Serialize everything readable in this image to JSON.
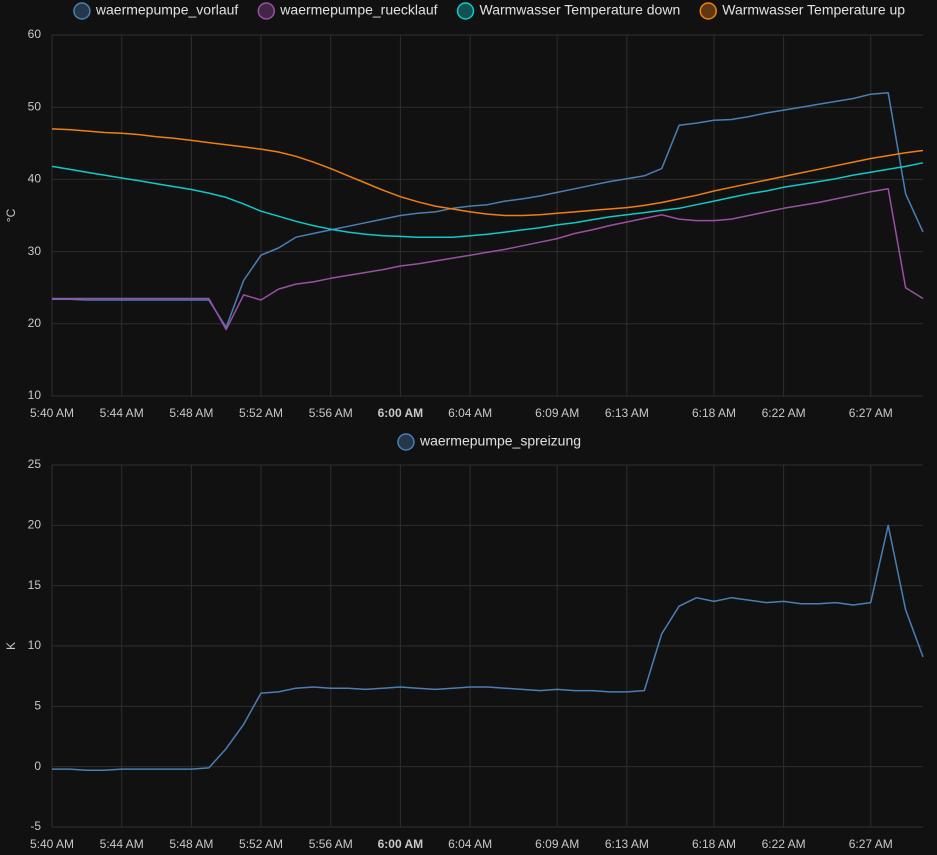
{
  "chart_data": [
    {
      "type": "line",
      "y_label": "°C",
      "x": [
        "5:40 AM",
        "5:41 AM",
        "5:42 AM",
        "5:43 AM",
        "5:44 AM",
        "5:45 AM",
        "5:46 AM",
        "5:47 AM",
        "5:48 AM",
        "5:49 AM",
        "5:50 AM",
        "5:51 AM",
        "5:52 AM",
        "5:53 AM",
        "5:54 AM",
        "5:55 AM",
        "5:56 AM",
        "5:57 AM",
        "5:58 AM",
        "5:59 AM",
        "6:00 AM",
        "6:01 AM",
        "6:02 AM",
        "6:03 AM",
        "6:04 AM",
        "6:05 AM",
        "6:06 AM",
        "6:07 AM",
        "6:08 AM",
        "6:09 AM",
        "6:10 AM",
        "6:11 AM",
        "6:12 AM",
        "6:13 AM",
        "6:14 AM",
        "6:15 AM",
        "6:16 AM",
        "6:17 AM",
        "6:18 AM",
        "6:19 AM",
        "6:20 AM",
        "6:21 AM",
        "6:22 AM",
        "6:23 AM",
        "6:24 AM",
        "6:25 AM",
        "6:26 AM",
        "6:27 AM",
        "6:28 AM",
        "6:29 AM",
        "6:30 AM"
      ],
      "series": [
        {
          "name": "waermepumpe_vorlauf",
          "color": "#4a7fb5",
          "values": [
            23.4,
            23.4,
            23.3,
            23.3,
            23.3,
            23.3,
            23.3,
            23.3,
            23.3,
            23.3,
            19.5,
            26,
            29.5,
            30.5,
            32,
            32.5,
            33,
            33.5,
            34,
            34.5,
            35,
            35.3,
            35.5,
            36,
            36.3,
            36.5,
            37,
            37.3,
            37.7,
            38.2,
            38.7,
            39.2,
            39.7,
            40.1,
            40.5,
            41.5,
            47.5,
            47.8,
            48.2,
            48.3,
            48.7,
            49.2,
            49.6,
            50,
            50.4,
            50.8,
            51.2,
            51.8,
            52,
            38,
            32.7
          ]
        },
        {
          "name": "waermepumpe_ruecklauf",
          "color": "#9b4fa5",
          "values": [
            23.5,
            23.5,
            23.5,
            23.5,
            23.5,
            23.5,
            23.5,
            23.5,
            23.5,
            23.5,
            19.2,
            24,
            23.3,
            24.8,
            25.5,
            25.8,
            26.3,
            26.7,
            27.1,
            27.5,
            28,
            28.3,
            28.7,
            29.1,
            29.5,
            29.9,
            30.3,
            30.8,
            31.3,
            31.8,
            32.5,
            33,
            33.6,
            34.1,
            34.6,
            35.1,
            34.5,
            34.3,
            34.3,
            34.5,
            35,
            35.5,
            36,
            36.4,
            36.8,
            37.3,
            37.8,
            38.3,
            38.7,
            25,
            23.5
          ]
        },
        {
          "name": "Warmwasser Temperature down",
          "color": "#10c9c9",
          "values": [
            41.8,
            41.4,
            41,
            40.6,
            40.2,
            39.8,
            39.4,
            39,
            38.6,
            38.1,
            37.5,
            36.6,
            35.6,
            34.9,
            34.2,
            33.6,
            33.1,
            32.7,
            32.4,
            32.2,
            32.1,
            32,
            32,
            32,
            32.2,
            32.4,
            32.7,
            33,
            33.3,
            33.7,
            34,
            34.4,
            34.8,
            35.1,
            35.4,
            35.7,
            36,
            36.5,
            37,
            37.5,
            38,
            38.4,
            38.9,
            39.3,
            39.7,
            40.1,
            40.6,
            41,
            41.4,
            41.8,
            42.3
          ]
        },
        {
          "name": "Warmwasser Temperature up",
          "color": "#f07f12",
          "values": [
            47,
            46.9,
            46.7,
            46.5,
            46.4,
            46.2,
            45.9,
            45.7,
            45.4,
            45.1,
            44.8,
            44.5,
            44.2,
            43.8,
            43.2,
            42.4,
            41.5,
            40.5,
            39.5,
            38.5,
            37.6,
            36.9,
            36.3,
            35.9,
            35.5,
            35.2,
            35,
            35,
            35.1,
            35.3,
            35.5,
            35.7,
            35.9,
            36.1,
            36.4,
            36.8,
            37.3,
            37.8,
            38.4,
            38.9,
            39.4,
            39.9,
            40.4,
            40.9,
            41.4,
            41.9,
            42.4,
            42.9,
            43.3,
            43.7,
            44
          ]
        }
      ],
      "xlim": [
        "5:40 AM",
        "6:30 AM"
      ],
      "xticks": [
        "5:40 AM",
        "5:44 AM",
        "5:48 AM",
        "5:52 AM",
        "5:56 AM",
        "6:00 AM",
        "6:04 AM",
        "6:09 AM",
        "6:13 AM",
        "6:18 AM",
        "6:22 AM",
        "6:27 AM"
      ],
      "ylim": [
        10,
        60
      ],
      "yticks": [
        10,
        20,
        30,
        40,
        50,
        60
      ],
      "grid": true
    },
    {
      "type": "line",
      "y_label": "K",
      "x": [
        "5:40 AM",
        "5:41 AM",
        "5:42 AM",
        "5:43 AM",
        "5:44 AM",
        "5:45 AM",
        "5:46 AM",
        "5:47 AM",
        "5:48 AM",
        "5:49 AM",
        "5:50 AM",
        "5:51 AM",
        "5:52 AM",
        "5:53 AM",
        "5:54 AM",
        "5:55 AM",
        "5:56 AM",
        "5:57 AM",
        "5:58 AM",
        "5:59 AM",
        "6:00 AM",
        "6:01 AM",
        "6:02 AM",
        "6:03 AM",
        "6:04 AM",
        "6:05 AM",
        "6:06 AM",
        "6:07 AM",
        "6:08 AM",
        "6:09 AM",
        "6:10 AM",
        "6:11 AM",
        "6:12 AM",
        "6:13 AM",
        "6:14 AM",
        "6:15 AM",
        "6:16 AM",
        "6:17 AM",
        "6:18 AM",
        "6:19 AM",
        "6:20 AM",
        "6:21 AM",
        "6:22 AM",
        "6:23 AM",
        "6:24 AM",
        "6:25 AM",
        "6:26 AM",
        "6:27 AM",
        "6:28 AM",
        "6:29 AM",
        "6:30 AM"
      ],
      "series": [
        {
          "name": "waermepumpe_spreizung",
          "color": "#4a7fb5",
          "values": [
            -0.2,
            -0.2,
            -0.3,
            -0.3,
            -0.2,
            -0.2,
            -0.2,
            -0.2,
            -0.2,
            -0.1,
            1.5,
            3.5,
            6.1,
            6.2,
            6.5,
            6.6,
            6.5,
            6.5,
            6.4,
            6.5,
            6.6,
            6.5,
            6.4,
            6.5,
            6.6,
            6.6,
            6.5,
            6.4,
            6.3,
            6.4,
            6.3,
            6.3,
            6.2,
            6.2,
            6.3,
            11,
            13.3,
            14,
            13.7,
            14,
            13.8,
            13.6,
            13.7,
            13.5,
            13.5,
            13.6,
            13.4,
            13.6,
            20,
            13,
            9.1
          ]
        }
      ],
      "xlim": [
        "5:40 AM",
        "6:30 AM"
      ],
      "xticks": [
        "5:40 AM",
        "5:44 AM",
        "5:48 AM",
        "5:52 AM",
        "5:56 AM",
        "6:00 AM",
        "6:04 AM",
        "6:09 AM",
        "6:13 AM",
        "6:18 AM",
        "6:22 AM",
        "6:27 AM"
      ],
      "ylim": [
        -5,
        25
      ],
      "yticks": [
        -5,
        0,
        5,
        10,
        15,
        20,
        25
      ],
      "grid": true
    }
  ]
}
